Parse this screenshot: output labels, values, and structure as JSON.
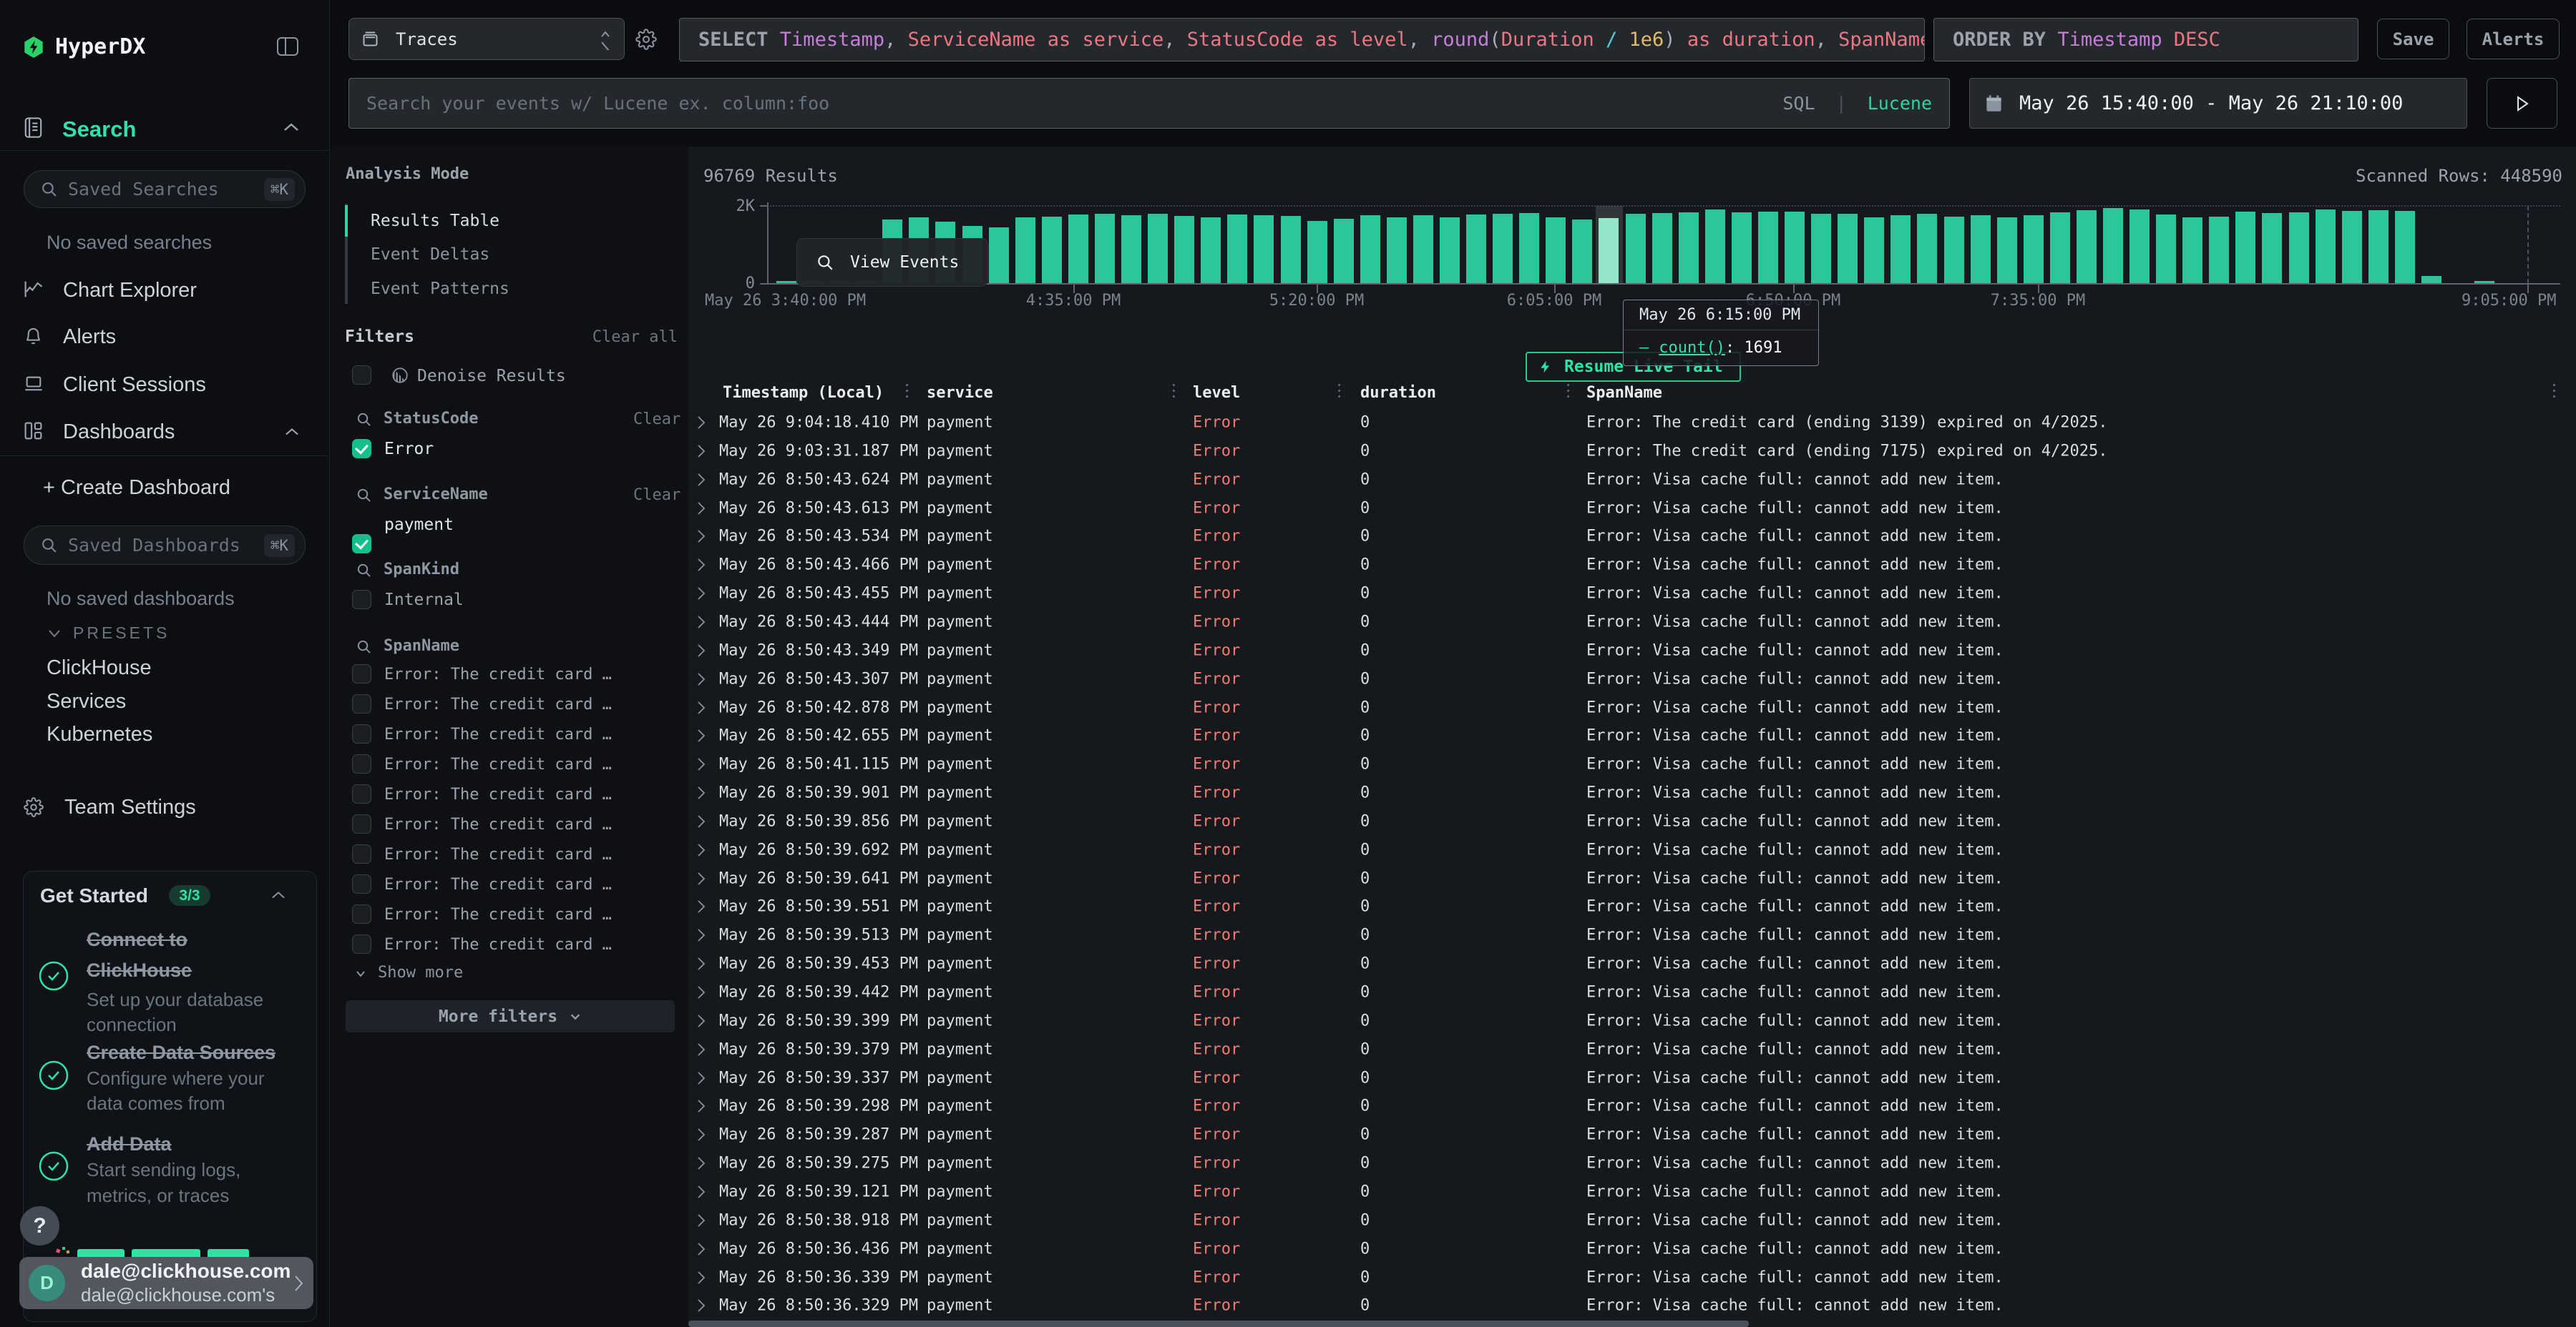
{
  "app": {
    "name": "HyperDX"
  },
  "sidebar": {
    "search_section": {
      "label": "Search"
    },
    "saved_searches_placeholder": "Saved Searches",
    "saved_searches_shortcut": "⌘K",
    "no_saved_searches": "No saved searches",
    "nav": [
      {
        "label": "Chart Explorer"
      },
      {
        "label": "Alerts"
      },
      {
        "label": "Client Sessions"
      },
      {
        "label": "Dashboards"
      }
    ],
    "create_dashboard": "+ Create Dashboard",
    "saved_dashboards_placeholder": "Saved Dashboards",
    "saved_dashboards_shortcut": "⌘K",
    "no_saved_dashboards": "No saved dashboards",
    "presets_label": "PRESETS",
    "presets": [
      "ClickHouse",
      "Services",
      "Kubernetes"
    ],
    "team_settings": "Team Settings",
    "get_started": {
      "title": "Get Started",
      "badge": "3/3",
      "items": [
        {
          "title1": "Connect to",
          "title2": "ClickHouse",
          "desc1": "Set up your database",
          "desc2": "connection"
        },
        {
          "title1": "Create Data Sources",
          "title2": "",
          "desc1": "Configure where your",
          "desc2": "data comes from"
        },
        {
          "title1": "Add Data",
          "title2": "",
          "desc1": "Start sending logs,",
          "desc2": "metrics, or traces"
        }
      ]
    },
    "help_button": "?",
    "user": {
      "avatar_letter": "D",
      "name": "dale@clickhouse.com",
      "org": "dale@clickhouse.com's"
    }
  },
  "topbar": {
    "source_select": "Traces",
    "query_tokens": [
      {
        "t": "SELECT ",
        "c": "kw"
      },
      {
        "t": "Timestamp",
        "c": "fn"
      },
      {
        "t": ", ",
        "c": "p"
      },
      {
        "t": "ServiceName as service",
        "c": "fld"
      },
      {
        "t": ", ",
        "c": "p"
      },
      {
        "t": "StatusCode as level",
        "c": "fld"
      },
      {
        "t": ", ",
        "c": "p"
      },
      {
        "t": "round",
        "c": "fn"
      },
      {
        "t": "(",
        "c": "p"
      },
      {
        "t": "Duration",
        "c": "fld"
      },
      {
        "t": " / ",
        "c": "op"
      },
      {
        "t": "1e6",
        "c": "num"
      },
      {
        "t": ")",
        "c": "p"
      },
      {
        "t": " as duration",
        "c": "fld"
      },
      {
        "t": ", ",
        "c": "p"
      },
      {
        "t": "SpanName",
        "c": "fld"
      }
    ],
    "order_tokens": [
      {
        "t": "ORDER BY ",
        "c": "kw"
      },
      {
        "t": "Timestamp ",
        "c": "fn"
      },
      {
        "t": "DESC",
        "c": "fld"
      }
    ],
    "save_button": "Save",
    "alerts_button": "Alerts",
    "search_placeholder": "Search your events w/ Lucene ex. column:foo",
    "lang_sql": "SQL",
    "lang_sep": "|",
    "lang_lucene": "Lucene",
    "date_range": "May 26 15:40:00 - May 26 21:10:00"
  },
  "results": {
    "count_label": "96769 Results",
    "scanned_rows": "Scanned Rows: 448590",
    "view_events": "View Events",
    "resume_live_tail": "Resume Live Tail"
  },
  "chart_data": {
    "type": "bar",
    "title": "",
    "ylabel": "count()",
    "ylim": [
      0,
      2000
    ],
    "y_tick_labels": [
      "2K",
      "0"
    ],
    "bucket_minutes": 5,
    "x_start": "May 26 3:40:00 PM",
    "x_end": "May 26 9:05:00 PM",
    "values": [
      8,
      8,
      8,
      8,
      1650,
      1700,
      1600,
      1480,
      1450,
      1700,
      1720,
      1780,
      1800,
      1750,
      1800,
      1740,
      1700,
      1780,
      1760,
      1740,
      1620,
      1660,
      1750,
      1700,
      1760,
      1700,
      1780,
      1800,
      1820,
      1700,
      1640,
      1691,
      1800,
      1820,
      1840,
      1900,
      1830,
      1860,
      1850,
      1790,
      1800,
      1700,
      1750,
      1800,
      1730,
      1760,
      1700,
      1760,
      1840,
      1890,
      1950,
      1900,
      1780,
      1700,
      1730,
      1850,
      1820,
      1840,
      1900,
      1870,
      1880,
      1870,
      180,
      0,
      12
    ],
    "highlight_index": 31,
    "tooltip": {
      "title": "May 26 6:15:00 PM",
      "series": "count()",
      "value": "1691"
    },
    "x_tick_labels": [
      "May 26 3:40:00 PM",
      "4:35:00 PM",
      "5:20:00 PM",
      "6:05:00 PM",
      "6:50:00 PM",
      "7:35:00 PM",
      "9:05:00 PM"
    ]
  },
  "analysis_mode": {
    "title": "Analysis Mode",
    "options": [
      "Results Table",
      "Event Deltas",
      "Event Patterns"
    ],
    "selected": 0
  },
  "filters": {
    "title": "Filters",
    "clear_all": "Clear all",
    "denoise_label": "Denoise Results",
    "groups": [
      {
        "name": "StatusCode",
        "clear": "Clear",
        "options": [
          {
            "label": "Error",
            "checked": true
          }
        ]
      },
      {
        "name": "ServiceName",
        "clear": "Clear",
        "options": [
          {
            "label": "payment",
            "checked": true
          }
        ]
      },
      {
        "name": "SpanKind",
        "clear": "",
        "options": [
          {
            "label": "Internal",
            "checked": false
          }
        ]
      }
    ],
    "span_name": {
      "name": "SpanName",
      "option_label": "Error: The credit card …",
      "option_count": 10
    },
    "show_more": "Show more",
    "more_filters": "More filters"
  },
  "table": {
    "columns": [
      "Timestamp (Local)",
      "service",
      "level",
      "duration",
      "SpanName"
    ],
    "default_service": "payment",
    "default_level": "Error",
    "default_duration": "0",
    "default_span": "Error: Visa cache full: cannot add new item.",
    "rows": [
      {
        "time": "May 26 9:04:18.410 PM",
        "span": "Error: The credit card (ending 3139) expired on 4/2025."
      },
      {
        "time": "May 26 9:03:31.187 PM",
        "span": "Error: The credit card (ending 7175) expired on 4/2025."
      },
      {
        "time": "May 26 8:50:43.624 PM"
      },
      {
        "time": "May 26 8:50:43.613 PM"
      },
      {
        "time": "May 26 8:50:43.534 PM"
      },
      {
        "time": "May 26 8:50:43.466 PM"
      },
      {
        "time": "May 26 8:50:43.455 PM"
      },
      {
        "time": "May 26 8:50:43.444 PM"
      },
      {
        "time": "May 26 8:50:43.349 PM"
      },
      {
        "time": "May 26 8:50:43.307 PM"
      },
      {
        "time": "May 26 8:50:42.878 PM"
      },
      {
        "time": "May 26 8:50:42.655 PM"
      },
      {
        "time": "May 26 8:50:41.115 PM"
      },
      {
        "time": "May 26 8:50:39.901 PM"
      },
      {
        "time": "May 26 8:50:39.856 PM"
      },
      {
        "time": "May 26 8:50:39.692 PM"
      },
      {
        "time": "May 26 8:50:39.641 PM"
      },
      {
        "time": "May 26 8:50:39.551 PM"
      },
      {
        "time": "May 26 8:50:39.513 PM"
      },
      {
        "time": "May 26 8:50:39.453 PM"
      },
      {
        "time": "May 26 8:50:39.442 PM"
      },
      {
        "time": "May 26 8:50:39.399 PM"
      },
      {
        "time": "May 26 8:50:39.379 PM"
      },
      {
        "time": "May 26 8:50:39.337 PM"
      },
      {
        "time": "May 26 8:50:39.298 PM"
      },
      {
        "time": "May 26 8:50:39.287 PM"
      },
      {
        "time": "May 26 8:50:39.275 PM"
      },
      {
        "time": "May 26 8:50:39.121 PM"
      },
      {
        "time": "May 26 8:50:38.918 PM"
      },
      {
        "time": "May 26 8:50:36.436 PM"
      },
      {
        "time": "May 26 8:50:36.339 PM"
      },
      {
        "time": "May 26 8:50:36.329 PM"
      }
    ]
  }
}
